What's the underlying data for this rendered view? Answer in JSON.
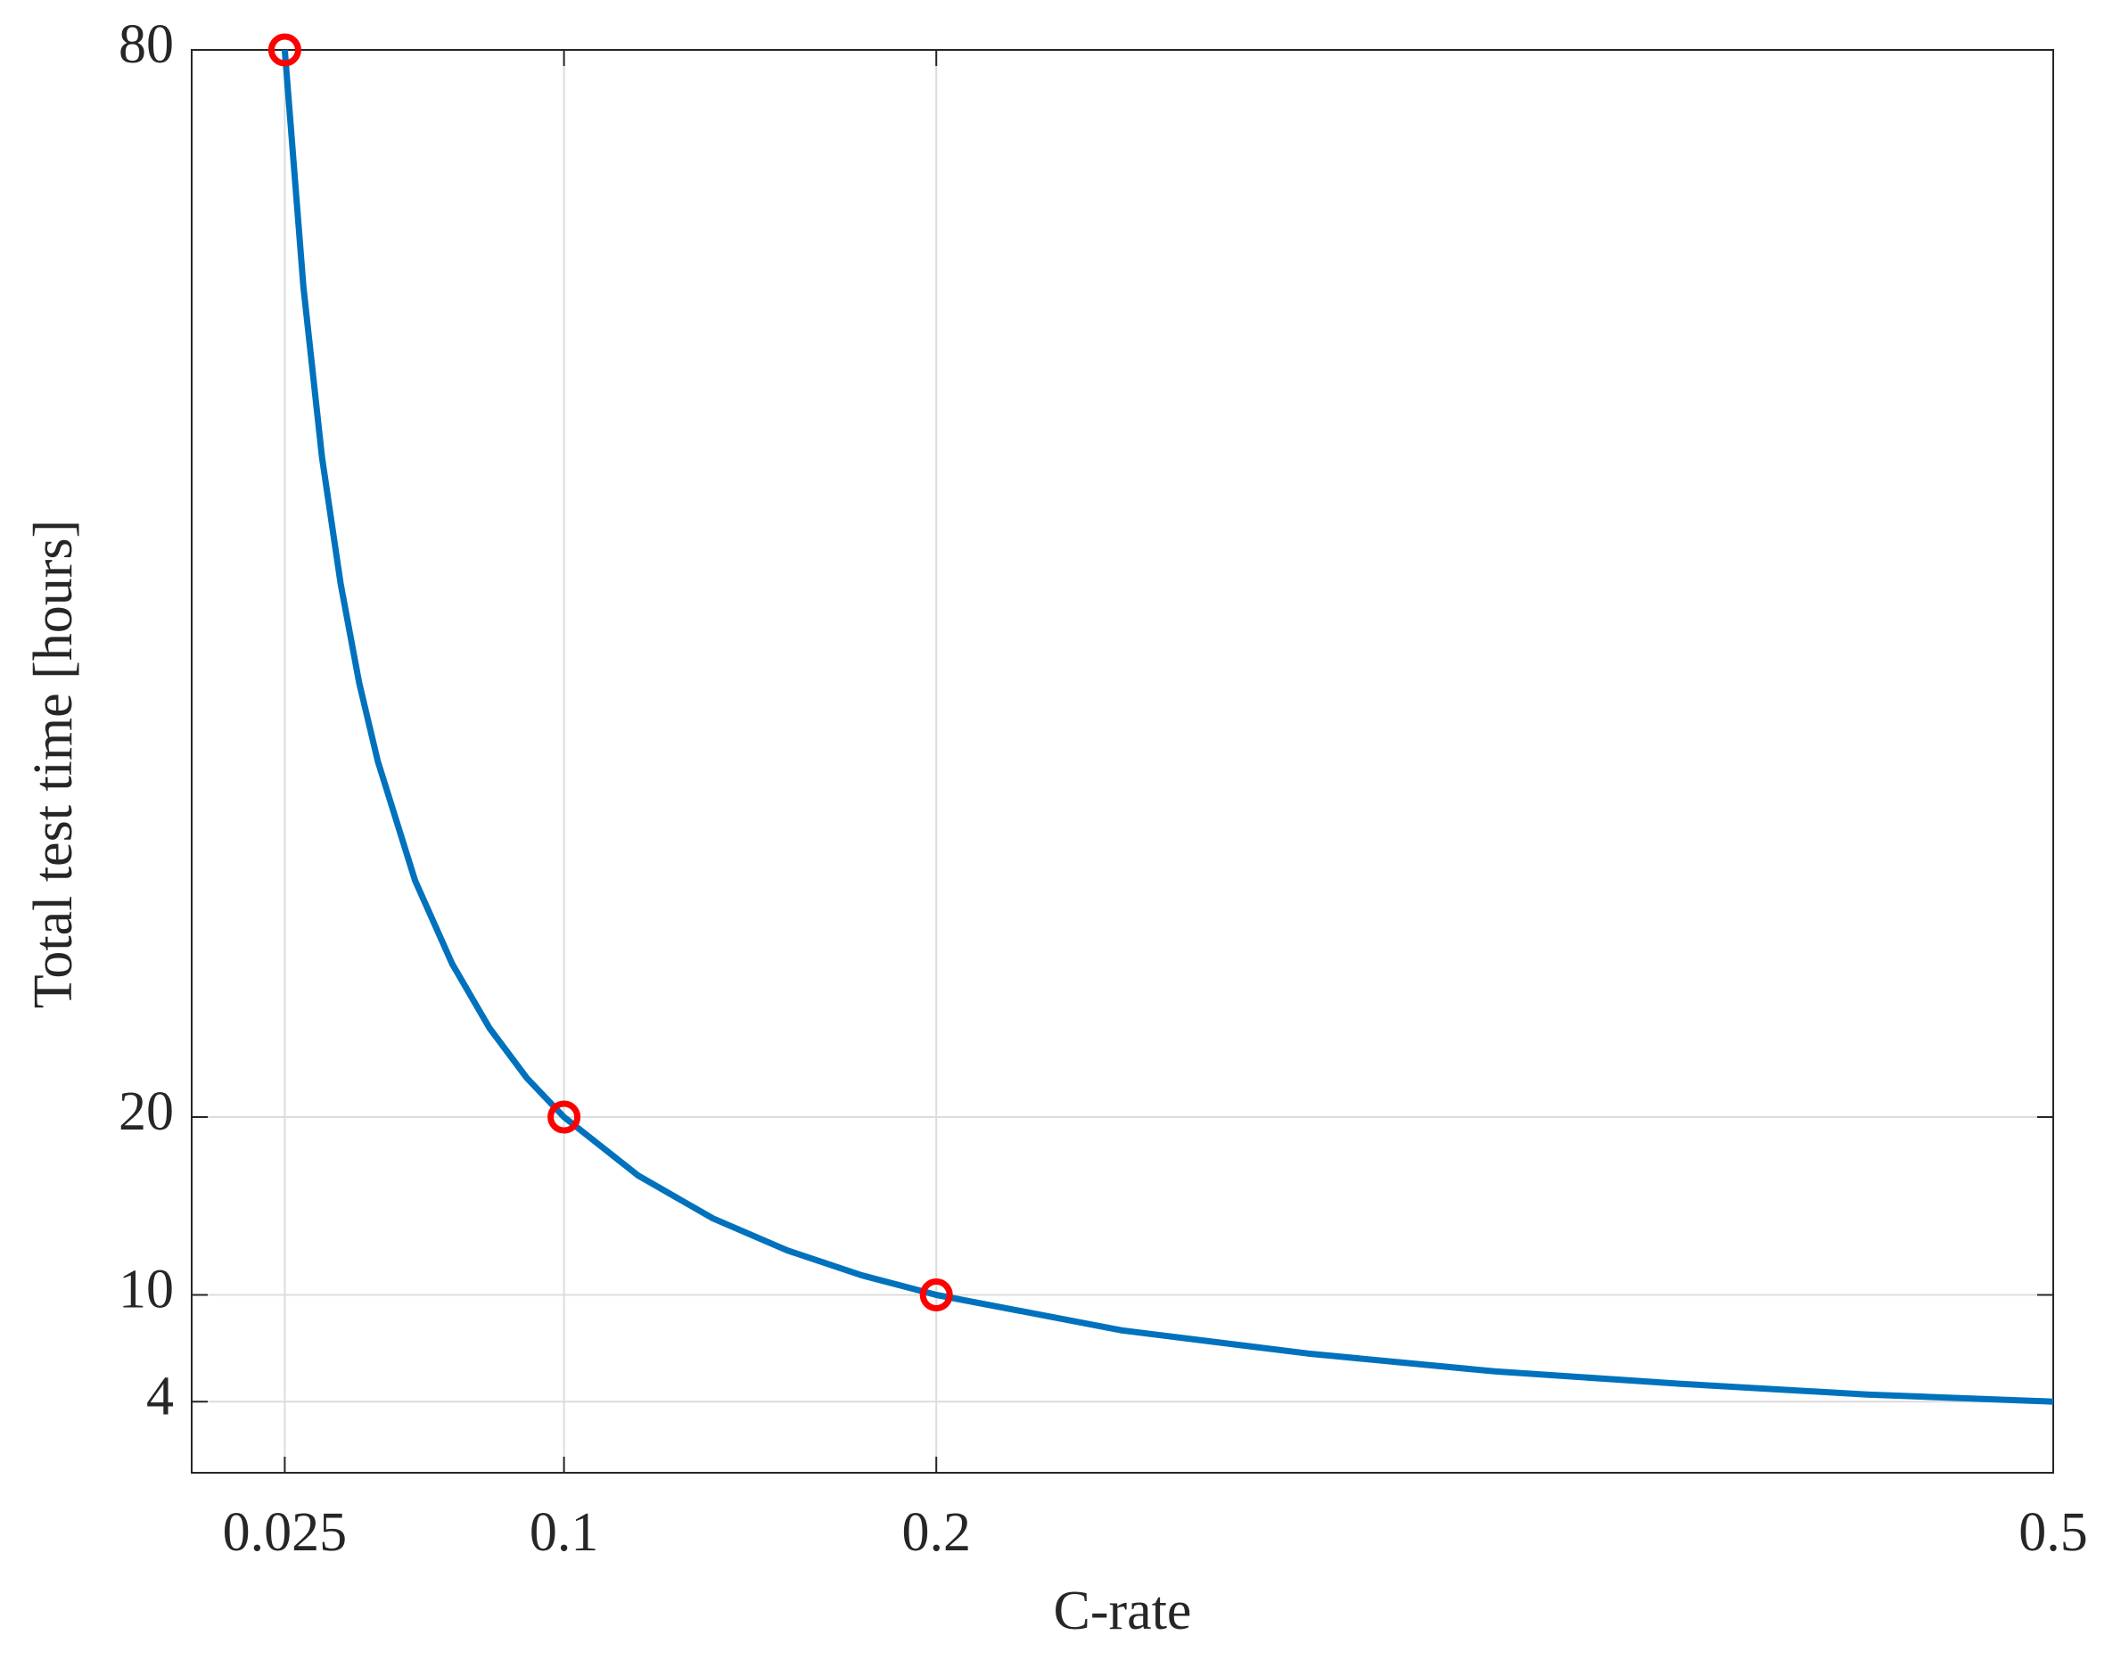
{
  "chart_data": {
    "type": "line",
    "xlabel": "C-rate",
    "ylabel": "Total test time [hours]",
    "xlim": [
      0,
      0.5
    ],
    "ylim": [
      0,
      80
    ],
    "xticks": [
      0.025,
      0.1,
      0.2,
      0.5
    ],
    "yticks": [
      4,
      10,
      20,
      80
    ],
    "grid": true,
    "series": [
      {
        "color": "#0072bd",
        "x": [
          0.025,
          0.03,
          0.035,
          0.04,
          0.045,
          0.05,
          0.06,
          0.07,
          0.08,
          0.09,
          0.1,
          0.12,
          0.14,
          0.16,
          0.18,
          0.2,
          0.25,
          0.3,
          0.35,
          0.4,
          0.45,
          0.5
        ],
        "values": [
          80,
          66.7,
          57.1,
          50,
          44.4,
          40,
          33.3,
          28.6,
          25,
          22.2,
          20,
          16.7,
          14.3,
          12.5,
          11.1,
          10,
          8,
          6.7,
          5.7,
          5,
          4.4,
          4
        ]
      },
      {
        "color": "#ff0000",
        "marker": "circle",
        "line": false,
        "x": [
          0.025,
          0.1,
          0.2
        ],
        "values": [
          80,
          20,
          10
        ]
      }
    ]
  }
}
